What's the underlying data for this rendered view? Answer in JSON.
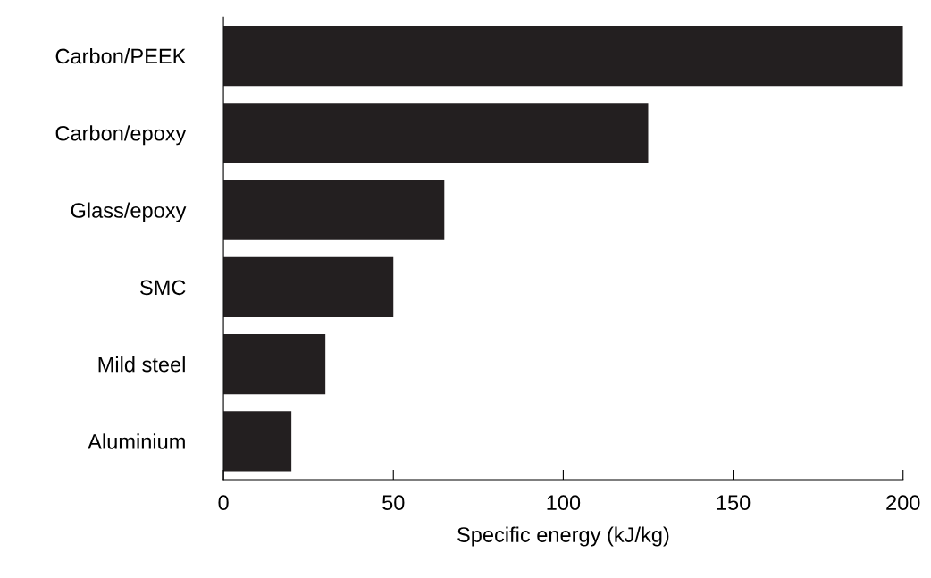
{
  "chart_data": {
    "type": "bar",
    "orientation": "horizontal",
    "xlabel": "Specific energy (kJ/kg)",
    "categories": [
      "Carbon/PEEK",
      "Carbon/epoxy",
      "Glass/epoxy",
      "SMC",
      "Mild steel",
      "Aluminium"
    ],
    "values": [
      200,
      125,
      65,
      50,
      30,
      20
    ],
    "color": "#231f20",
    "xlim": [
      0,
      200
    ],
    "xticks": [
      0,
      50,
      100,
      150,
      200
    ],
    "grid": false
  }
}
